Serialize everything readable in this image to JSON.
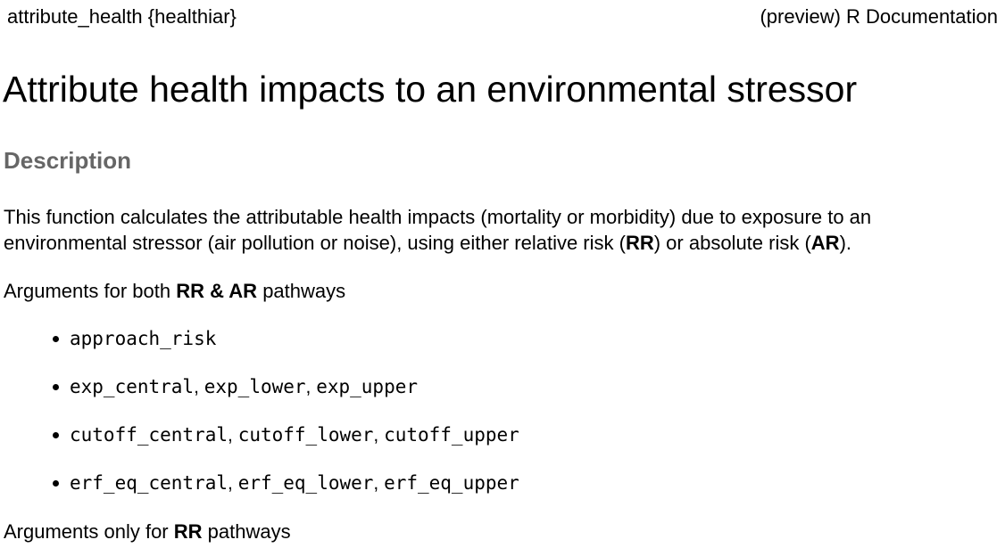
{
  "header": {
    "package": "attribute_health {healthiar}",
    "doc_label": "(preview) R Documentation"
  },
  "title": "Attribute health impacts to an environmental stressor",
  "section": "Description",
  "description": {
    "line1": "This function calculates the attributable health impacts (mortality or morbidity) due to exposure to an",
    "line2_a": "environmental stressor (air pollution or noise), using either relative risk (",
    "rr": "RR",
    "line2_b": ") or absolute risk (",
    "ar": "AR",
    "line2_c": ")."
  },
  "args_both": {
    "prefix": "Arguments for both ",
    "bold": "RR & AR",
    "suffix": " pathways"
  },
  "arg_items": [
    [
      "approach_risk"
    ],
    [
      "exp_central",
      "exp_lower",
      "exp_upper"
    ],
    [
      "cutoff_central",
      "cutoff_lower",
      "cutoff_upper"
    ],
    [
      "erf_eq_central",
      "erf_eq_lower",
      "erf_eq_upper"
    ]
  ],
  "args_rr": {
    "prefix": "Arguments only for ",
    "bold": "RR",
    "suffix": " pathways"
  }
}
